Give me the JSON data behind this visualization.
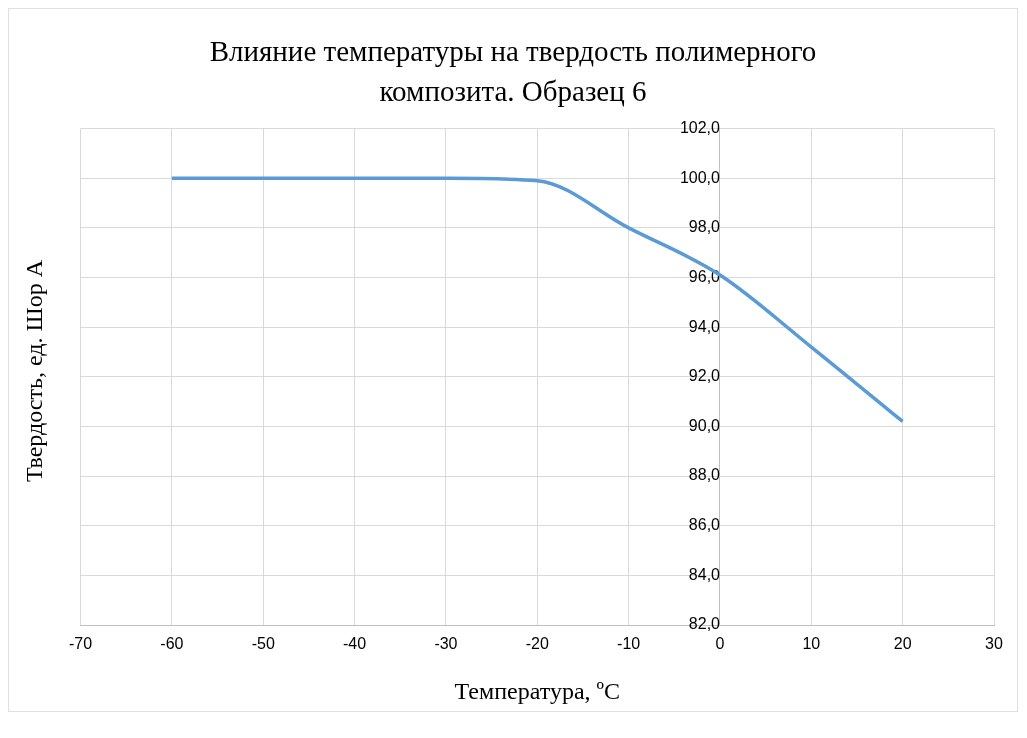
{
  "chart_data": {
    "type": "line",
    "title": "Влияние  температуры на твердость полимерного композита. Образец 6",
    "xlabel": "Температура, ºС",
    "ylabel": "Твердость,  ед. Шор А",
    "x": [
      -60,
      -30,
      -20,
      -10,
      0,
      10,
      20
    ],
    "series": [
      {
        "color": "#5b9bd5",
        "values": [
          100,
          100,
          99.9,
          98,
          96.1,
          93.2,
          90.2
        ]
      }
    ],
    "xlim": [
      -70,
      30
    ],
    "xticks": [
      -70,
      -60,
      -50,
      -40,
      -30,
      -20,
      -10,
      0,
      10,
      20,
      30
    ],
    "ylim": [
      82,
      102
    ],
    "yticks": [
      {
        "value": 82,
        "label": "82,0"
      },
      {
        "value": 84,
        "label": "84,0"
      },
      {
        "value": 86,
        "label": "86,0"
      },
      {
        "value": 88,
        "label": "88,0"
      },
      {
        "value": 90,
        "label": "90,0"
      },
      {
        "value": 92,
        "label": "92,0"
      },
      {
        "value": 94,
        "label": "94,0"
      },
      {
        "value": 96,
        "label": "96,0"
      },
      {
        "value": 98,
        "label": "98,0"
      },
      {
        "value": 100,
        "label": "100,0"
      },
      {
        "value": 102,
        "label": "102,0"
      }
    ],
    "grid": true,
    "legend": false,
    "marker": "none",
    "line_style": "solid"
  }
}
